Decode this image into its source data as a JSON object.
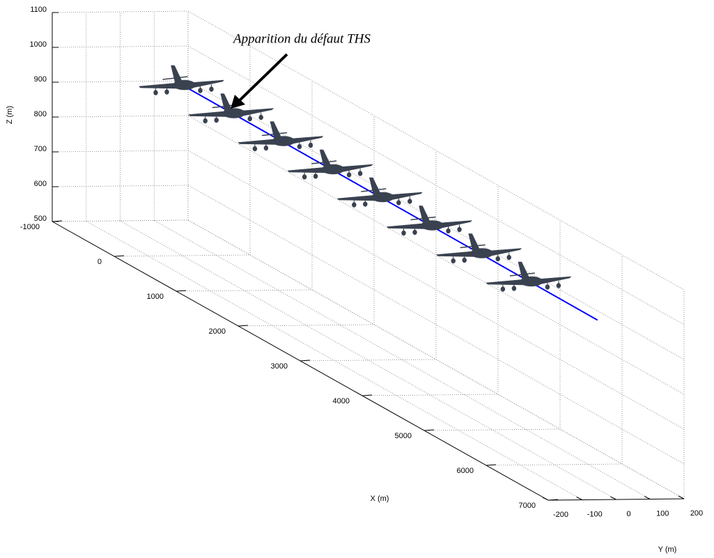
{
  "chart_data": {
    "type": "line3d",
    "annotation": "Apparition du défaut THS",
    "xlabel": "X (m)",
    "ylabel": "Y (m)",
    "zlabel": "Z (m)",
    "xlim": [
      -1000,
      7000
    ],
    "ylim": [
      -200,
      200
    ],
    "zlim": [
      500,
      1100
    ],
    "xticks": [
      -1000,
      0,
      1000,
      2000,
      3000,
      4000,
      5000,
      6000,
      7000
    ],
    "yticks": [
      -200,
      -100,
      0,
      100,
      200
    ],
    "zticks": [
      500,
      600,
      700,
      800,
      900,
      1000,
      1100
    ],
    "grid": true,
    "trajectory": {
      "color": "#0000ff",
      "x": [
        0,
        6700
      ],
      "y": [
        0,
        0
      ],
      "z": [
        990,
        985
      ]
    },
    "aircraft": {
      "color": "#3a4250",
      "x": [
        0,
        800,
        1600,
        2400,
        3200,
        4000,
        4800,
        5600
      ],
      "y": [
        0,
        0,
        0,
        0,
        0,
        0,
        0,
        0
      ],
      "z": [
        990,
        989,
        989,
        988,
        988,
        987,
        987,
        986
      ]
    }
  }
}
